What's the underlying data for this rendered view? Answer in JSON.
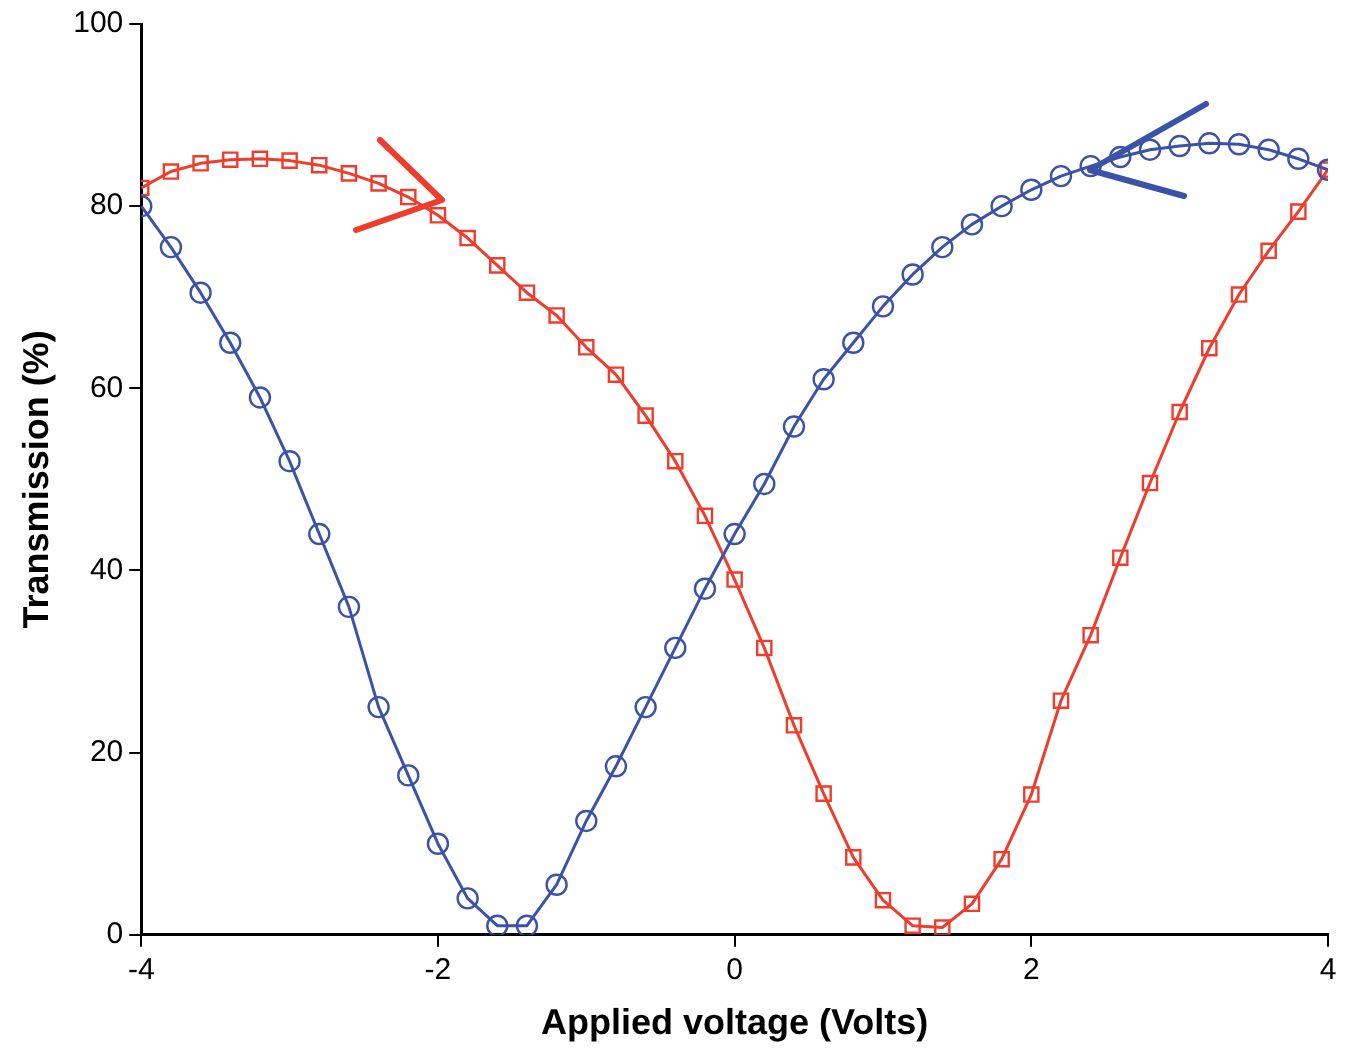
{
  "chart_data": {
    "type": "line",
    "xlabel": "Applied voltage (Volts)",
    "ylabel": "Transmission (%)",
    "x": [
      -4,
      -3.8,
      -3.6,
      -3.4,
      -3.2,
      -3,
      -2.8,
      -2.6,
      -2.4,
      -2.2,
      -2,
      -1.8,
      -1.6,
      -1.4,
      -1.2,
      -1,
      -0.8,
      -0.6,
      -0.4,
      -0.2,
      0,
      0.2,
      0.4,
      0.6,
      0.8,
      1,
      1.2,
      1.4,
      1.6,
      1.8,
      2,
      2.2,
      2.4,
      2.6,
      2.8,
      3,
      3.2,
      3.4,
      3.6,
      3.8,
      4
    ],
    "series": [
      {
        "color": "#3a52a8",
        "marker": "circle",
        "values": [
          80,
          75.5,
          70.5,
          65,
          59,
          52,
          44,
          36,
          25,
          17.5,
          10,
          4,
          1,
          1,
          5.5,
          12.5,
          18.5,
          25,
          31.5,
          38,
          44,
          49.5,
          55.8,
          61,
          65,
          69,
          72.5,
          75.5,
          78,
          80,
          81.8,
          83.3,
          84.4,
          85.4,
          86.2,
          86.6,
          86.9,
          86.8,
          86.2,
          85.2,
          84
        ]
      },
      {
        "color": "#f03c2c",
        "marker": "square",
        "values": [
          82,
          83.8,
          84.7,
          85.1,
          85.2,
          85,
          84.5,
          83.6,
          82.5,
          81,
          79,
          76.5,
          73.5,
          70.5,
          68,
          64.5,
          61.5,
          57,
          52,
          46,
          39,
          31.5,
          23,
          15.5,
          8.5,
          3.8,
          1,
          0.8,
          3.4,
          8.3,
          15.4,
          25.7,
          32.9,
          41.4,
          49.6,
          57.4,
          64.4,
          70.3,
          75.1,
          79.4,
          84
        ]
      }
    ],
    "xlim": [
      -4,
      4
    ],
    "xticks": [
      -4,
      -2,
      0,
      2,
      4
    ],
    "ylim": [
      0,
      100
    ],
    "yticks": [
      0,
      20,
      40,
      60,
      80,
      100
    ],
    "grid": false,
    "legend": false,
    "line_style": "solid"
  }
}
